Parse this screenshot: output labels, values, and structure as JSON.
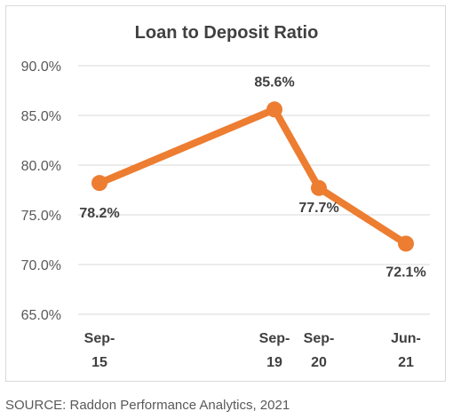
{
  "chart_data": {
    "type": "line",
    "title": "Loan to Deposit Ratio",
    "xlabel": "",
    "ylabel": "",
    "categories": [
      [
        "Sep-",
        "15"
      ],
      [
        "Sep-",
        "19"
      ],
      [
        "Sep-",
        "20"
      ],
      [
        "Jun-",
        "21"
      ]
    ],
    "series": [
      {
        "values": [
          78.2,
          85.6,
          77.7,
          72.1
        ],
        "data_labels": [
          "78.2%",
          "85.6%",
          "77.7%",
          "72.1%"
        ]
      }
    ],
    "ylim": [
      65.0,
      90.0
    ],
    "yticks": [
      "65.0%",
      "70.0%",
      "75.0%",
      "80.0%",
      "85.0%",
      "90.0%"
    ],
    "grid": true,
    "legend": "none",
    "colors": {
      "series": "#ED7D31",
      "grid": "#D9D9D9",
      "text": "#404040"
    }
  },
  "source": "SOURCE: Raddon Performance Analytics, 2021"
}
